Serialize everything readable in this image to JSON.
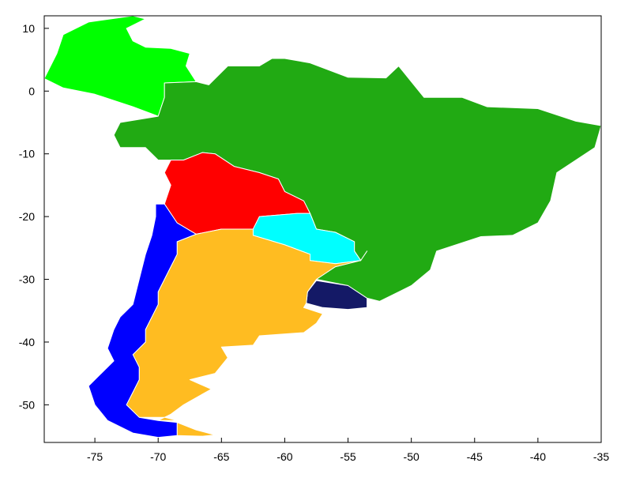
{
  "chart_data": {
    "type": "map",
    "title": "",
    "xlabel": "",
    "ylabel": "",
    "xlim": [
      -79,
      -35
    ],
    "ylim": [
      -56,
      12
    ],
    "x_ticks": [
      -75,
      -70,
      -65,
      -60,
      -55,
      -50,
      -45,
      -40,
      -35
    ],
    "y_ticks": [
      10,
      0,
      -10,
      -20,
      -30,
      -40,
      -50
    ],
    "grid": false,
    "legend": "none",
    "regions": [
      {
        "id": "colombia",
        "color": "#00ff00",
        "outline": [
          [
            -77.5,
            9
          ],
          [
            -75.5,
            11
          ],
          [
            -72,
            12
          ],
          [
            -71,
            11.5
          ],
          [
            -72.5,
            10
          ],
          [
            -72,
            8
          ],
          [
            -71,
            7
          ],
          [
            -69,
            6.8
          ],
          [
            -67.5,
            6
          ],
          [
            -67.8,
            4
          ],
          [
            -67,
            1.5
          ],
          [
            -69.5,
            1.3
          ],
          [
            -69.5,
            -1
          ],
          [
            -70,
            -4
          ],
          [
            -72,
            -2.5
          ],
          [
            -75,
            -0.5
          ],
          [
            -77.5,
            0.5
          ],
          [
            -79,
            2
          ],
          [
            -78,
            6
          ]
        ]
      },
      {
        "id": "brazil",
        "color": "#21aa13",
        "outline": [
          [
            -60,
            5.2
          ],
          [
            -58,
            4.5
          ],
          [
            -55,
            2.2
          ],
          [
            -52,
            2.1
          ],
          [
            -51,
            4
          ],
          [
            -50,
            1.5
          ],
          [
            -49,
            -1
          ],
          [
            -46,
            -1
          ],
          [
            -44,
            -2.5
          ],
          [
            -40,
            -2.8
          ],
          [
            -37,
            -4.8
          ],
          [
            -35,
            -5.5
          ],
          [
            -35.5,
            -9
          ],
          [
            -38.5,
            -13
          ],
          [
            -39,
            -17.5
          ],
          [
            -40,
            -21
          ],
          [
            -42,
            -23
          ],
          [
            -44.5,
            -23.2
          ],
          [
            -48,
            -25.5
          ],
          [
            -48.5,
            -28.5
          ],
          [
            -50,
            -31
          ],
          [
            -52.5,
            -33.5
          ],
          [
            -53.5,
            -33
          ],
          [
            -55,
            -31
          ],
          [
            -57.5,
            -30
          ],
          [
            -56,
            -28
          ],
          [
            -54,
            -27
          ],
          [
            -54.5,
            -25.5
          ],
          [
            -54.5,
            -24
          ],
          [
            -56,
            -22.5
          ],
          [
            -57.5,
            -22
          ],
          [
            -58,
            -19.5
          ],
          [
            -58.5,
            -17.5
          ],
          [
            -60,
            -16
          ],
          [
            -60.5,
            -14
          ],
          [
            -62,
            -13
          ],
          [
            -64,
            -12
          ],
          [
            -65.5,
            -10
          ],
          [
            -66.5,
            -9.8
          ],
          [
            -68,
            -11
          ],
          [
            -70,
            -11
          ],
          [
            -71,
            -9
          ],
          [
            -73,
            -9
          ],
          [
            -73.5,
            -7
          ],
          [
            -73,
            -5
          ],
          [
            -70,
            -4
          ],
          [
            -69.5,
            -1
          ],
          [
            -69.5,
            1.3
          ],
          [
            -67,
            1.5
          ],
          [
            -66,
            1
          ],
          [
            -64.5,
            4
          ],
          [
            -62,
            4
          ],
          [
            -61,
            5.2
          ]
        ]
      },
      {
        "id": "bolivia",
        "color": "#ff0000",
        "outline": [
          [
            -69,
            -11
          ],
          [
            -68,
            -11
          ],
          [
            -66.5,
            -9.8
          ],
          [
            -65.5,
            -10
          ],
          [
            -64,
            -12
          ],
          [
            -62,
            -13
          ],
          [
            -60.5,
            -14
          ],
          [
            -60,
            -16
          ],
          [
            -58.5,
            -17.5
          ],
          [
            -58,
            -19.5
          ],
          [
            -59,
            -19.5
          ],
          [
            -62,
            -20
          ],
          [
            -62.5,
            -22
          ],
          [
            -65,
            -22
          ],
          [
            -67,
            -22.8
          ],
          [
            -68.5,
            -21
          ],
          [
            -69.5,
            -18
          ],
          [
            -69,
            -15
          ],
          [
            -69.5,
            -13
          ]
        ]
      },
      {
        "id": "paraguay",
        "color": "#00ffff",
        "outline": [
          [
            -62.5,
            -22
          ],
          [
            -62,
            -20
          ],
          [
            -59,
            -19.5
          ],
          [
            -58,
            -19.5
          ],
          [
            -57.5,
            -22
          ],
          [
            -56,
            -22.5
          ],
          [
            -54.5,
            -24
          ],
          [
            -54.5,
            -25.5
          ],
          [
            -54,
            -27
          ],
          [
            -56,
            -27.5
          ],
          [
            -58,
            -27
          ],
          [
            -58,
            -26
          ],
          [
            -60,
            -24.5
          ],
          [
            -62.5,
            -23
          ]
        ]
      },
      {
        "id": "uruguay",
        "color": "#141966",
        "outline": [
          [
            -57.5,
            -30.2
          ],
          [
            -55,
            -31
          ],
          [
            -53.5,
            -33
          ],
          [
            -53.5,
            -34.5
          ],
          [
            -55,
            -34.8
          ],
          [
            -57,
            -34.5
          ],
          [
            -58.3,
            -33.8
          ],
          [
            -58.2,
            -32
          ]
        ]
      },
      {
        "id": "argentina",
        "color": "#ffbc21",
        "outline": [
          [
            -67,
            -22.8
          ],
          [
            -65,
            -22
          ],
          [
            -62.5,
            -22
          ],
          [
            -62.5,
            -23
          ],
          [
            -60,
            -24.5
          ],
          [
            -58,
            -26
          ],
          [
            -58,
            -27
          ],
          [
            -56,
            -27.5
          ],
          [
            -54,
            -27
          ],
          [
            -53.5,
            -25.5
          ],
          [
            -54,
            -27
          ],
          [
            -56,
            -28
          ],
          [
            -57.5,
            -30
          ],
          [
            -58.2,
            -32
          ],
          [
            -58.3,
            -33.8
          ],
          [
            -58.5,
            -34.5
          ],
          [
            -57,
            -35.5
          ],
          [
            -57.5,
            -37
          ],
          [
            -58.5,
            -38.5
          ],
          [
            -62,
            -39
          ],
          [
            -62.5,
            -40.5
          ],
          [
            -65,
            -40.8
          ],
          [
            -64.5,
            -42.5
          ],
          [
            -65.5,
            -45
          ],
          [
            -67.5,
            -46
          ],
          [
            -65.8,
            -47.5
          ],
          [
            -68,
            -50
          ],
          [
            -69,
            -51.5
          ],
          [
            -70,
            -52.5
          ],
          [
            -68.5,
            -52.5
          ],
          [
            -69.5,
            -52
          ],
          [
            -71.5,
            -52
          ],
          [
            -72.5,
            -50
          ],
          [
            -72,
            -48
          ],
          [
            -71.5,
            -46
          ],
          [
            -71.5,
            -44
          ],
          [
            -72,
            -42
          ],
          [
            -71,
            -40
          ],
          [
            -71,
            -38
          ],
          [
            -70.5,
            -36
          ],
          [
            -70,
            -34
          ],
          [
            -70,
            -32
          ],
          [
            -69.5,
            -30
          ],
          [
            -69,
            -28
          ],
          [
            -68.5,
            -26
          ],
          [
            -68.5,
            -24
          ]
        ]
      },
      {
        "id": "argentina-tierra-del-fuego",
        "color": "#ffbc21",
        "outline": [
          [
            -68.5,
            -52.8
          ],
          [
            -68.5,
            -54.9
          ],
          [
            -66.5,
            -55
          ],
          [
            -65.5,
            -54.8
          ],
          [
            -67,
            -54
          ]
        ]
      },
      {
        "id": "chile",
        "color": "#0000ff",
        "outline": [
          [
            -70.2,
            -18
          ],
          [
            -69.5,
            -18
          ],
          [
            -68.5,
            -21
          ],
          [
            -67,
            -22.8
          ],
          [
            -68.5,
            -24
          ],
          [
            -68.5,
            -26
          ],
          [
            -69,
            -28
          ],
          [
            -69.5,
            -30
          ],
          [
            -70,
            -32
          ],
          [
            -70,
            -34
          ],
          [
            -70.5,
            -36
          ],
          [
            -71,
            -38
          ],
          [
            -71,
            -40
          ],
          [
            -72,
            -42
          ],
          [
            -71.5,
            -44
          ],
          [
            -71.5,
            -46
          ],
          [
            -72,
            -48
          ],
          [
            -72.5,
            -50
          ],
          [
            -71.5,
            -52
          ],
          [
            -70,
            -52.5
          ],
          [
            -68.5,
            -52.8
          ],
          [
            -68.5,
            -54.9
          ],
          [
            -70,
            -55.2
          ],
          [
            -72,
            -54.5
          ],
          [
            -74,
            -52.5
          ],
          [
            -75,
            -50
          ],
          [
            -75.5,
            -47
          ],
          [
            -74.5,
            -45
          ],
          [
            -73.5,
            -43
          ],
          [
            -74,
            -41
          ],
          [
            -73.5,
            -38
          ],
          [
            -73,
            -36
          ],
          [
            -72,
            -34
          ],
          [
            -71.5,
            -30
          ],
          [
            -71,
            -26
          ],
          [
            -70.5,
            -23
          ],
          [
            -70.2,
            -20
          ]
        ]
      }
    ]
  }
}
